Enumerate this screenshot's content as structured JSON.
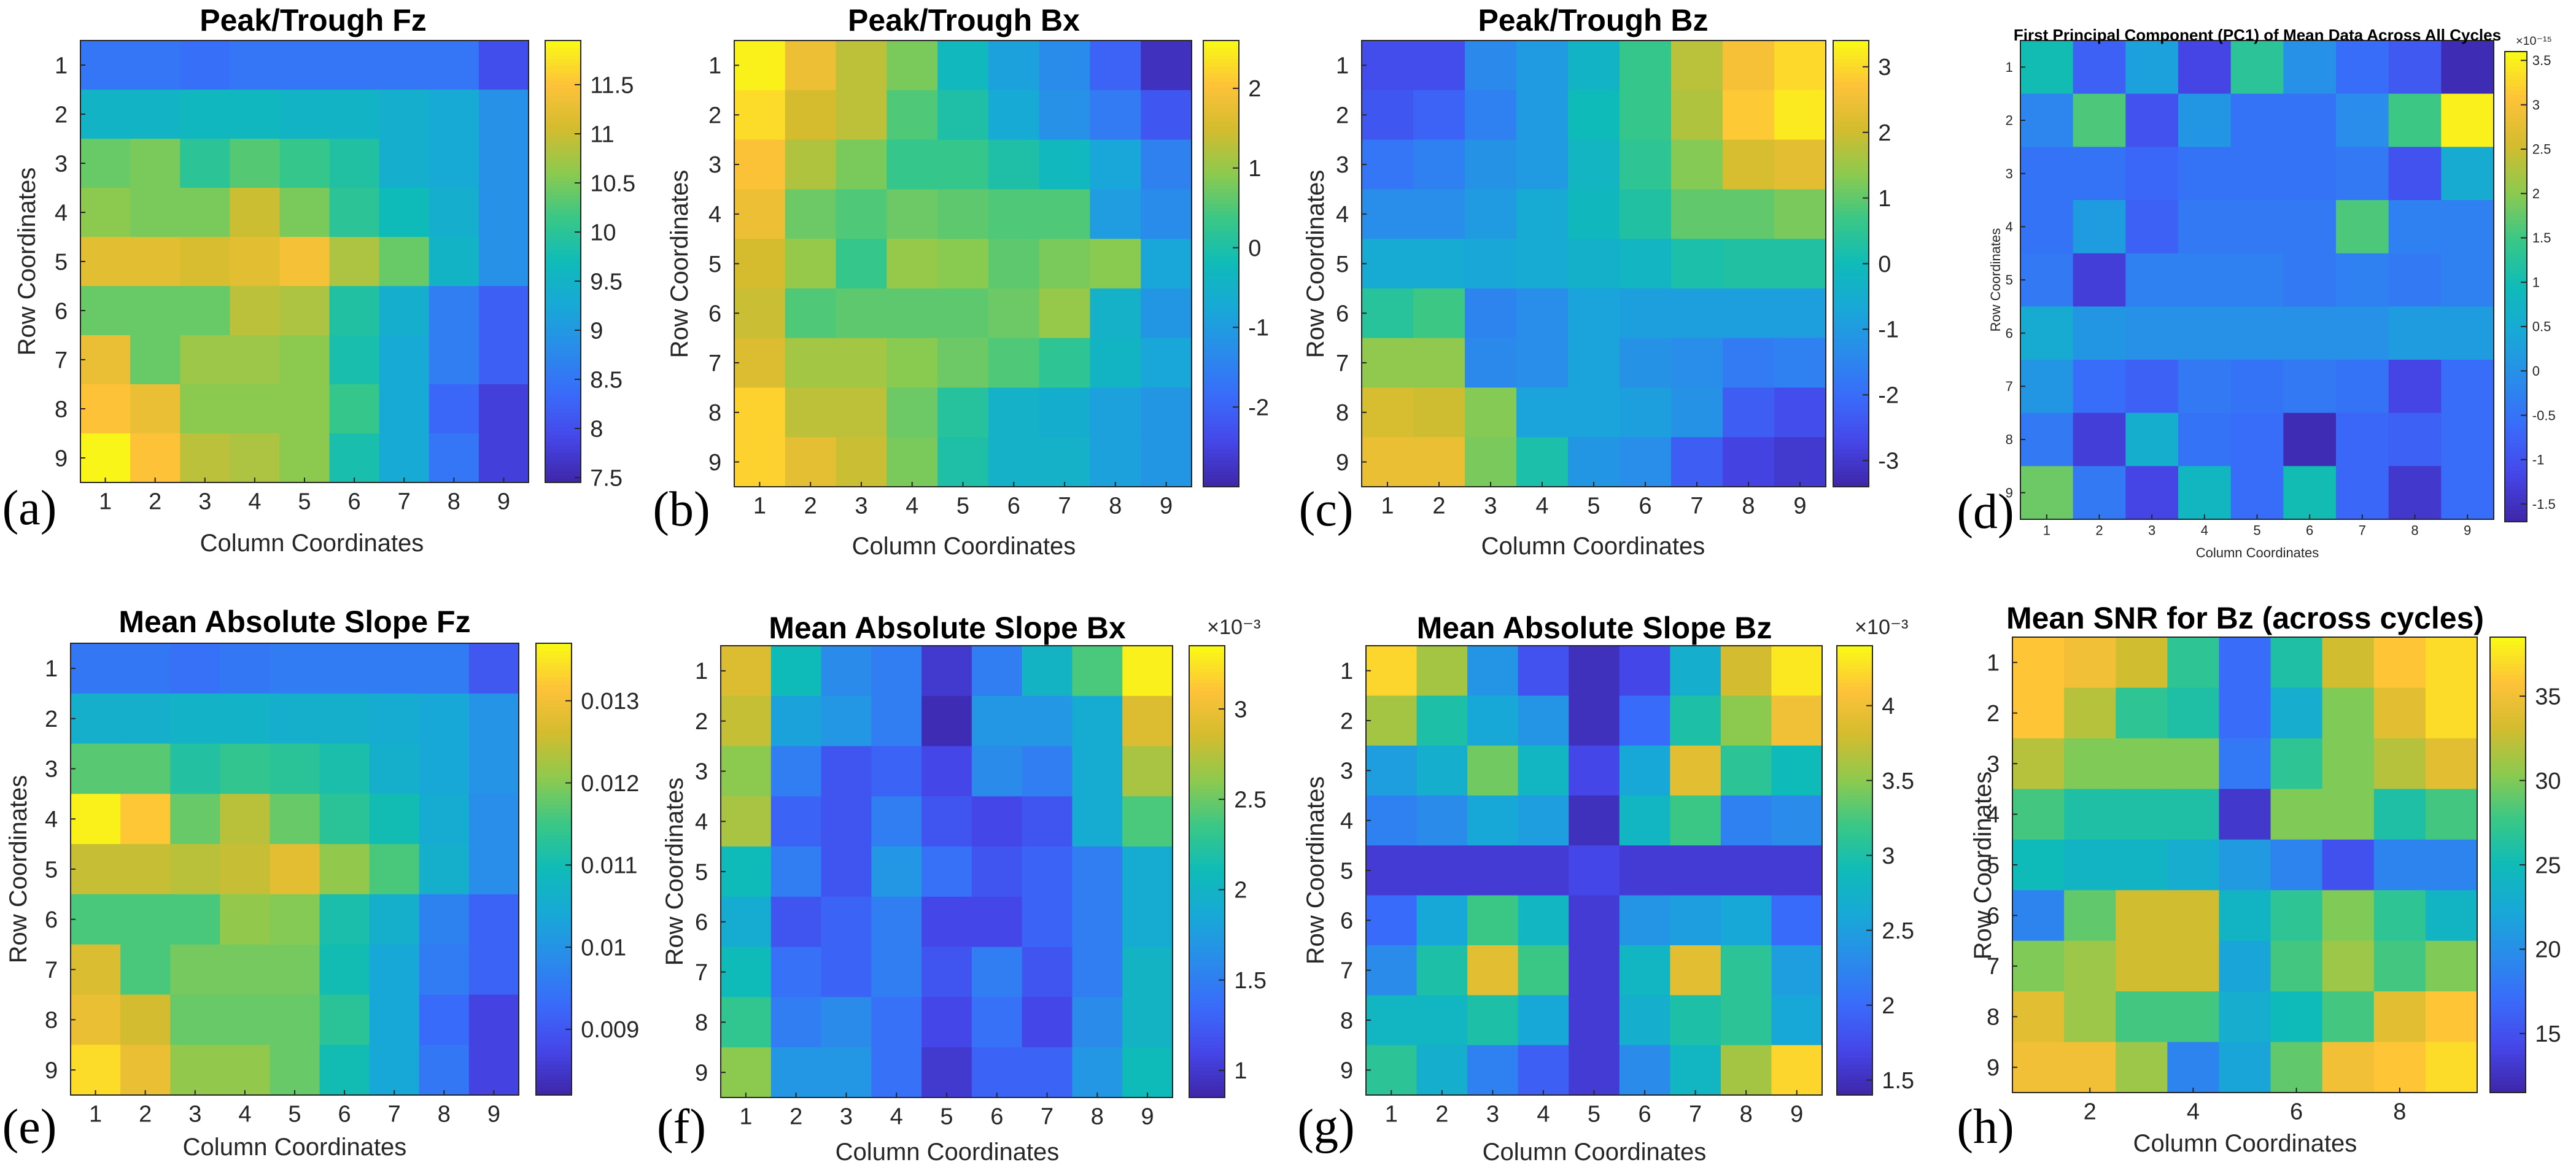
{
  "panels": [
    {
      "label": "(a)",
      "title": "Peak/Trough Fz",
      "xlabel": "Column Coordinates",
      "ylabel": "Row Coordinates",
      "xticks": [
        "1",
        "2",
        "3",
        "4",
        "5",
        "6",
        "7",
        "8",
        "9"
      ],
      "yticks": [
        "1",
        "2",
        "3",
        "4",
        "5",
        "6",
        "7",
        "8",
        "9"
      ],
      "clim": [
        7.45,
        11.95
      ],
      "cticks": [
        {
          "v": 7.5,
          "t": "7.5"
        },
        {
          "v": 8,
          "t": "8"
        },
        {
          "v": 8.5,
          "t": "8.5"
        },
        {
          "v": 9,
          "t": "9"
        },
        {
          "v": 9.5,
          "t": "9.5"
        },
        {
          "v": 10,
          "t": "10"
        },
        {
          "v": 10.5,
          "t": "10.5"
        },
        {
          "v": 11,
          "t": "11"
        },
        {
          "v": 11.5,
          "t": "11.5"
        }
      ],
      "cexp": "",
      "matrix": [
        [
          8.5,
          8.5,
          8.4,
          8.5,
          8.5,
          8.5,
          8.5,
          8.5,
          8.0
        ],
        [
          9.5,
          9.5,
          9.6,
          9.6,
          9.5,
          9.5,
          9.4,
          9.3,
          8.9
        ],
        [
          10.4,
          10.5,
          10.0,
          10.3,
          10.1,
          9.9,
          9.4,
          9.3,
          8.9
        ],
        [
          10.6,
          10.5,
          10.5,
          11.0,
          10.5,
          10.0,
          9.7,
          9.4,
          8.9
        ],
        [
          11.2,
          11.2,
          11.1,
          11.2,
          11.4,
          10.8,
          10.4,
          9.5,
          8.9
        ],
        [
          10.4,
          10.4,
          10.4,
          10.9,
          10.8,
          9.9,
          9.4,
          8.6,
          8.2
        ],
        [
          11.3,
          10.4,
          10.7,
          10.7,
          10.6,
          9.8,
          9.3,
          8.6,
          8.2
        ],
        [
          11.5,
          11.3,
          10.6,
          10.6,
          10.6,
          10.1,
          9.3,
          8.3,
          7.8
        ],
        [
          11.9,
          11.5,
          10.9,
          10.8,
          10.6,
          9.8,
          9.3,
          8.5,
          7.8
        ]
      ]
    },
    {
      "label": "(b)",
      "title": "Peak/Trough Bx",
      "xlabel": "Column Coordinates",
      "ylabel": "Row Coordinates",
      "xticks": [
        "1",
        "2",
        "3",
        "4",
        "5",
        "6",
        "7",
        "8",
        "9"
      ],
      "yticks": [
        "1",
        "2",
        "3",
        "4",
        "5",
        "6",
        "7",
        "8",
        "9"
      ],
      "clim": [
        -3.0,
        2.6
      ],
      "cticks": [
        {
          "v": -2,
          "t": "-2"
        },
        {
          "v": -1,
          "t": "-1"
        },
        {
          "v": 0,
          "t": "0"
        },
        {
          "v": 1,
          "t": "1"
        },
        {
          "v": 2,
          "t": "2"
        }
      ],
      "cexp": "",
      "matrix": [
        [
          2.5,
          1.8,
          1.3,
          0.8,
          -0.3,
          -0.9,
          -1.3,
          -2.0,
          -2.8
        ],
        [
          2.3,
          1.5,
          1.3,
          0.5,
          0.0,
          -0.7,
          -1.2,
          -1.6,
          -2.2
        ],
        [
          2.0,
          1.2,
          0.8,
          0.3,
          0.3,
          0.0,
          -0.3,
          -0.8,
          -1.5
        ],
        [
          1.8,
          0.7,
          0.5,
          0.7,
          0.6,
          0.5,
          0.5,
          -1.0,
          -1.3
        ],
        [
          1.5,
          1.0,
          0.3,
          1.0,
          0.9,
          0.6,
          0.8,
          0.9,
          -0.8
        ],
        [
          1.4,
          0.5,
          0.6,
          0.6,
          0.6,
          0.7,
          1.0,
          -0.5,
          -1.1
        ],
        [
          1.6,
          1.1,
          1.1,
          0.9,
          0.7,
          0.5,
          0.2,
          -0.4,
          -0.8
        ],
        [
          2.2,
          1.3,
          1.3,
          0.7,
          0.1,
          -0.5,
          -0.6,
          -0.9,
          -1.1
        ],
        [
          2.2,
          1.7,
          1.4,
          0.8,
          0.0,
          -0.5,
          -0.5,
          -0.9,
          -1.1
        ]
      ]
    },
    {
      "label": "(c)",
      "title": "Peak/Trough Bz",
      "xlabel": "Column Coordinates",
      "ylabel": "Row Coordinates",
      "xticks": [
        "1",
        "2",
        "3",
        "4",
        "5",
        "6",
        "7",
        "8",
        "9"
      ],
      "yticks": [
        "1",
        "2",
        "3",
        "4",
        "5",
        "6",
        "7",
        "8",
        "9"
      ],
      "clim": [
        -3.4,
        3.4
      ],
      "cticks": [
        {
          "v": -3,
          "t": "-3"
        },
        {
          "v": -2,
          "t": "-2"
        },
        {
          "v": -1,
          "t": "-1"
        },
        {
          "v": 0,
          "t": "0"
        },
        {
          "v": 1,
          "t": "1"
        },
        {
          "v": 2,
          "t": "2"
        },
        {
          "v": 3,
          "t": "3"
        }
      ],
      "cexp": "",
      "matrix": [
        [
          -2.6,
          -2.6,
          -1.4,
          -1.0,
          -0.3,
          0.6,
          1.8,
          2.6,
          3.0
        ],
        [
          -2.4,
          -2.2,
          -1.6,
          -1.0,
          0.0,
          0.6,
          1.7,
          2.8,
          3.2
        ],
        [
          -1.8,
          -1.6,
          -1.2,
          -1.0,
          -0.2,
          0.5,
          1.3,
          2.1,
          2.3
        ],
        [
          -1.3,
          -1.3,
          -1.0,
          -0.6,
          -0.1,
          0.3,
          1.0,
          1.0,
          1.2
        ],
        [
          -0.6,
          -0.6,
          -0.7,
          -0.6,
          -0.4,
          -0.2,
          0.2,
          0.3,
          0.3
        ],
        [
          0.4,
          0.7,
          -1.5,
          -1.3,
          -0.8,
          -0.9,
          -0.9,
          -0.9,
          -0.9
        ],
        [
          1.4,
          1.4,
          -1.4,
          -1.3,
          -0.8,
          -1.2,
          -1.3,
          -1.7,
          -1.6
        ],
        [
          2.1,
          2.0,
          1.3,
          -0.8,
          -0.8,
          -0.9,
          -1.2,
          -2.3,
          -2.6
        ],
        [
          2.4,
          2.4,
          1.2,
          0.2,
          -1.1,
          -1.3,
          -2.3,
          -2.8,
          -3.0
        ]
      ]
    },
    {
      "label": "(d)",
      "title": "First Principal Component (PC1) of Mean Data Across All Cycles",
      "xlabel": "Column Coordinates",
      "ylabel": "Row Coordinates",
      "xticks": [
        "1",
        "2",
        "3",
        "4",
        "5",
        "6",
        "7",
        "8",
        "9"
      ],
      "yticks": [
        "1",
        "2",
        "3",
        "4",
        "5",
        "6",
        "7",
        "8",
        "9"
      ],
      "clim": [
        -1.7,
        3.6
      ],
      "cticks": [
        {
          "v": -1.5,
          "t": "-1.5"
        },
        {
          "v": -1,
          "t": "-1"
        },
        {
          "v": -0.5,
          "t": "-0.5"
        },
        {
          "v": 0,
          "t": "0"
        },
        {
          "v": 0.5,
          "t": "0.5"
        },
        {
          "v": 1,
          "t": "1"
        },
        {
          "v": 1.5,
          "t": "1.5"
        },
        {
          "v": 2,
          "t": "2"
        },
        {
          "v": 2.5,
          "t": "2.5"
        },
        {
          "v": 3,
          "t": "3"
        },
        {
          "v": 3.5,
          "t": "3.5"
        }
      ],
      "cexp": "×10⁻¹⁵",
      "matrix": [
        [
          1.0,
          -0.8,
          0.3,
          -1.2,
          1.3,
          0.0,
          -0.6,
          -0.9,
          -1.6
        ],
        [
          -0.2,
          1.6,
          -1.0,
          0.1,
          -0.5,
          -0.5,
          -0.1,
          1.5,
          3.5
        ],
        [
          -0.5,
          -0.5,
          -0.7,
          -0.5,
          -0.5,
          -0.5,
          -0.4,
          -1.0,
          0.5
        ],
        [
          -0.5,
          0.2,
          -0.8,
          -0.4,
          -0.4,
          -0.4,
          1.6,
          -0.3,
          -0.3
        ],
        [
          -0.4,
          -1.3,
          -0.3,
          -0.3,
          -0.3,
          -0.4,
          -0.3,
          -0.4,
          -0.3
        ],
        [
          0.5,
          0.1,
          0.0,
          0.0,
          0.0,
          0.0,
          0.0,
          0.2,
          0.2
        ],
        [
          0.1,
          -0.6,
          -0.8,
          -0.4,
          -0.5,
          -0.4,
          -0.5,
          -1.2,
          -0.6
        ],
        [
          -0.4,
          -1.3,
          0.6,
          -0.5,
          -0.6,
          -1.6,
          -0.7,
          -0.8,
          -0.6
        ],
        [
          1.8,
          -0.4,
          -1.2,
          0.8,
          -0.6,
          1.0,
          -0.7,
          -1.4,
          -0.6
        ]
      ]
    },
    {
      "label": "(e)",
      "title": "Mean Absolute Slope Fz",
      "xlabel": "Column Coordinates",
      "ylabel": "Row Coordinates",
      "xticks": [
        "1",
        "2",
        "3",
        "4",
        "5",
        "6",
        "7",
        "8",
        "9"
      ],
      "yticks": [
        "1",
        "2",
        "3",
        "4",
        "5",
        "6",
        "7",
        "8",
        "9"
      ],
      "clim": [
        0.0082,
        0.0137
      ],
      "cticks": [
        {
          "v": 0.009,
          "t": "0.009"
        },
        {
          "v": 0.01,
          "t": "0.01"
        },
        {
          "v": 0.011,
          "t": "0.011"
        },
        {
          "v": 0.012,
          "t": "0.012"
        },
        {
          "v": 0.013,
          "t": "0.013"
        }
      ],
      "cexp": "",
      "matrix": [
        [
          0.0095,
          0.0095,
          0.0094,
          0.0095,
          0.0096,
          0.0096,
          0.0096,
          0.0096,
          0.009
        ],
        [
          0.0106,
          0.0106,
          0.0107,
          0.0107,
          0.0106,
          0.0106,
          0.0105,
          0.0104,
          0.01
        ],
        [
          0.0117,
          0.0117,
          0.0112,
          0.0114,
          0.0113,
          0.0111,
          0.0106,
          0.0104,
          0.01
        ],
        [
          0.0136,
          0.0132,
          0.0118,
          0.0124,
          0.0118,
          0.0113,
          0.011,
          0.0105,
          0.0099
        ],
        [
          0.0125,
          0.0125,
          0.0124,
          0.0125,
          0.0128,
          0.0121,
          0.0116,
          0.0106,
          0.0099
        ],
        [
          0.0116,
          0.0116,
          0.0116,
          0.0121,
          0.012,
          0.0111,
          0.0106,
          0.0097,
          0.0092
        ],
        [
          0.0127,
          0.0116,
          0.0119,
          0.0119,
          0.0119,
          0.011,
          0.0104,
          0.0096,
          0.0092
        ],
        [
          0.0129,
          0.0126,
          0.0118,
          0.0118,
          0.0118,
          0.0113,
          0.0104,
          0.0093,
          0.0087
        ],
        [
          0.0134,
          0.0129,
          0.0121,
          0.0121,
          0.0118,
          0.011,
          0.0104,
          0.0095,
          0.0087
        ]
      ]
    },
    {
      "label": "(f)",
      "title": "Mean Absolute Slope Bx",
      "xlabel": "Column Coordinates",
      "ylabel": "Row Coordinates",
      "xticks": [
        "1",
        "2",
        "3",
        "4",
        "5",
        "6",
        "7",
        "8",
        "9"
      ],
      "yticks": [
        "1",
        "2",
        "3",
        "4",
        "5",
        "6",
        "7",
        "8",
        "9"
      ],
      "clim": [
        0.85,
        3.35
      ],
      "cticks": [
        {
          "v": 1,
          "t": "1"
        },
        {
          "v": 1.5,
          "t": "1.5"
        },
        {
          "v": 2,
          "t": "2"
        },
        {
          "v": 2.5,
          "t": "2.5"
        },
        {
          "v": 3,
          "t": "3"
        }
      ],
      "cexp": "×10⁻³",
      "matrix": [
        [
          2.9,
          2.1,
          1.6,
          1.5,
          1.0,
          1.5,
          2.0,
          2.4,
          3.3
        ],
        [
          2.8,
          1.8,
          1.7,
          1.5,
          0.9,
          1.7,
          1.7,
          1.9,
          2.9
        ],
        [
          2.6,
          1.5,
          1.2,
          1.3,
          1.1,
          1.6,
          1.5,
          1.9,
          2.7
        ],
        [
          2.7,
          1.3,
          1.2,
          1.5,
          1.2,
          1.1,
          1.2,
          1.9,
          2.4
        ],
        [
          2.1,
          1.5,
          1.2,
          1.7,
          1.4,
          1.2,
          1.3,
          1.5,
          1.9
        ],
        [
          1.9,
          1.2,
          1.3,
          1.5,
          1.1,
          1.1,
          1.3,
          1.5,
          1.9
        ],
        [
          2.1,
          1.4,
          1.3,
          1.5,
          1.2,
          1.5,
          1.2,
          1.5,
          2.0
        ],
        [
          2.3,
          1.5,
          1.6,
          1.4,
          1.1,
          1.4,
          1.1,
          1.6,
          2.0
        ],
        [
          2.6,
          1.7,
          1.7,
          1.4,
          1.0,
          1.3,
          1.3,
          1.7,
          2.1
        ]
      ]
    },
    {
      "label": "(g)",
      "title": "Mean Absolute Slope Bz",
      "xlabel": "Column Coordinates",
      "ylabel": "Row Coordinates",
      "xticks": [
        "1",
        "2",
        "3",
        "4",
        "5",
        "6",
        "7",
        "8",
        "9"
      ],
      "yticks": [
        "1",
        "2",
        "3",
        "4",
        "5",
        "6",
        "7",
        "8",
        "9"
      ],
      "clim": [
        1.4,
        4.4
      ],
      "cticks": [
        {
          "v": 1.5,
          "t": "1.5"
        },
        {
          "v": 2,
          "t": "2"
        },
        {
          "v": 2.5,
          "t": "2.5"
        },
        {
          "v": 3,
          "t": "3"
        },
        {
          "v": 3.5,
          "t": "3.5"
        },
        {
          "v": 4,
          "t": "4"
        }
      ],
      "cexp": "×10⁻³",
      "matrix": [
        [
          4.2,
          3.6,
          2.4,
          1.8,
          1.5,
          1.7,
          2.7,
          3.8,
          4.3
        ],
        [
          3.6,
          3.0,
          2.6,
          2.4,
          1.5,
          2.0,
          3.0,
          3.5,
          4.0
        ],
        [
          2.5,
          2.7,
          3.4,
          2.8,
          1.7,
          2.6,
          3.9,
          3.1,
          2.9
        ],
        [
          2.2,
          2.3,
          2.6,
          2.5,
          1.5,
          2.8,
          3.2,
          2.2,
          2.3
        ],
        [
          1.6,
          1.6,
          1.6,
          1.6,
          1.7,
          1.6,
          1.6,
          1.6,
          1.6
        ],
        [
          2.0,
          2.6,
          3.2,
          2.8,
          1.6,
          2.4,
          2.5,
          2.6,
          2.0
        ],
        [
          2.3,
          3.0,
          3.9,
          3.2,
          1.6,
          2.8,
          3.9,
          3.1,
          2.5
        ],
        [
          2.8,
          2.8,
          3.0,
          2.6,
          1.6,
          2.7,
          3.0,
          3.1,
          2.6
        ],
        [
          3.1,
          2.7,
          2.2,
          1.9,
          1.6,
          2.3,
          2.8,
          3.6,
          4.2
        ]
      ]
    },
    {
      "label": "(h)",
      "title": "Mean SNR for Bz (across cycles)",
      "xlabel": "Column Coordinates",
      "ylabel": "Row Coordinates",
      "xticks": [
        "2",
        "4",
        "6",
        "8"
      ],
      "yticks": [
        "1",
        "2",
        "3",
        "4",
        "5",
        "6",
        "7",
        "8",
        "9"
      ],
      "clim": [
        11.5,
        38.5
      ],
      "cticks": [
        {
          "v": 15,
          "t": "15"
        },
        {
          "v": 20,
          "t": "20"
        },
        {
          "v": 25,
          "t": "25"
        },
        {
          "v": 30,
          "t": "30"
        },
        {
          "v": 35,
          "t": "35"
        }
      ],
      "cexp": "",
      "matrix": [
        [
          36,
          35,
          33,
          27,
          17,
          26,
          33,
          36,
          37
        ],
        [
          36,
          32,
          27,
          26,
          17,
          23,
          30,
          34,
          37
        ],
        [
          32,
          30,
          30,
          30,
          18,
          27,
          30,
          32,
          34
        ],
        [
          28,
          26,
          26,
          26,
          13,
          30,
          30,
          26,
          28
        ],
        [
          25,
          24,
          24,
          23,
          21,
          19,
          15,
          19,
          19
        ],
        [
          19,
          29,
          33,
          33,
          24,
          27,
          30,
          27,
          24
        ],
        [
          30,
          31,
          33,
          33,
          22,
          28,
          31,
          28,
          30
        ],
        [
          34,
          31,
          28,
          28,
          23,
          25,
          28,
          34,
          36
        ],
        [
          35,
          35,
          31,
          19,
          22,
          29,
          35,
          36,
          37
        ]
      ]
    }
  ]
}
